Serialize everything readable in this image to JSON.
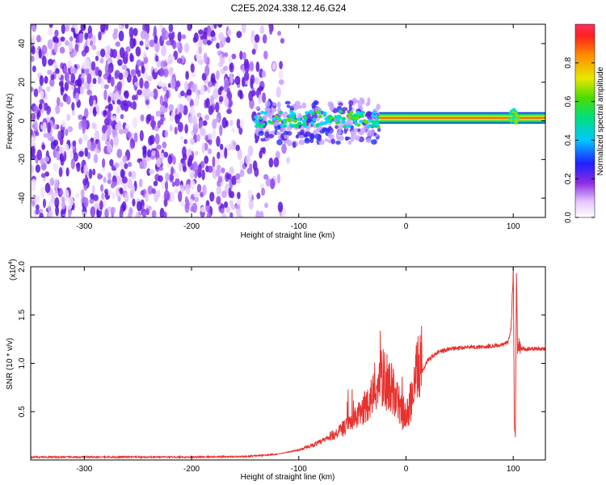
{
  "title": "C2E5.2024.338.12.46.G24",
  "chart_data": [
    {
      "type": "heatmap",
      "xlabel": "Height of straight line (km)",
      "ylabel": "Frequency (Hz)",
      "xlim": [
        -350,
        130
      ],
      "ylim": [
        -50,
        50
      ],
      "xticks": [
        -300,
        -200,
        -100,
        0,
        100
      ],
      "yticks": [
        -40,
        -20,
        0,
        20,
        40
      ],
      "colorbar": {
        "label": "Normalized spectral amplitude",
        "ticks": [
          0.0,
          0.2,
          0.4,
          0.6,
          0.8
        ],
        "range": [
          0,
          1
        ]
      },
      "features": [
        {
          "x_range": [
            -350,
            -140
          ],
          "freq_range": [
            -50,
            50
          ],
          "amplitude": 0.1
        },
        {
          "x_range": [
            -140,
            -25
          ],
          "freq_range": [
            -12,
            10
          ],
          "amplitude": 0.35
        },
        {
          "x_range": [
            -25,
            130
          ],
          "freq_center": 1.5,
          "freq_width": 3,
          "amplitude": 1.0
        },
        {
          "x_range": [
            95,
            105
          ],
          "freq_center": 2,
          "freq_width": 8,
          "amplitude": 0.6
        }
      ]
    },
    {
      "type": "line",
      "xlabel": "Height of straight line (km)",
      "ylabel": "SNR (10 * v/v)",
      "y_scale_label": "(x10",
      "y_scale_exp": "4",
      "xlim": [
        -350,
        130
      ],
      "ylim": [
        0,
        20000
      ],
      "xticks": [
        -300,
        -200,
        -100,
        0,
        100
      ],
      "yticks": [
        0.5,
        1.0,
        1.5,
        2.0
      ],
      "color": "#e8322f",
      "series": [
        {
          "x": [
            -350,
            -300,
            -250,
            -200,
            -150,
            -120,
            -100,
            -80,
            -60,
            -50,
            -40,
            -30,
            -25,
            -20,
            -15,
            -10,
            -5,
            0,
            5,
            10,
            15,
            20,
            30,
            40,
            50,
            60,
            70,
            80,
            90,
            95,
            98,
            100,
            101,
            102,
            103,
            104,
            105,
            106,
            110,
            120,
            130
          ],
          "y": [
            300,
            300,
            300,
            300,
            350,
            600,
            1000,
            1700,
            2800,
            3500,
            4500,
            6000,
            7000,
            7200,
            6500,
            5500,
            4500,
            3500,
            5500,
            7500,
            9000,
            10300,
            11200,
            11500,
            11600,
            11700,
            11700,
            11800,
            11900,
            12200,
            13500,
            20000,
            4000,
            2600,
            19000,
            11500,
            12000,
            11600,
            11500,
            11500,
            11500
          ]
        }
      ]
    }
  ]
}
